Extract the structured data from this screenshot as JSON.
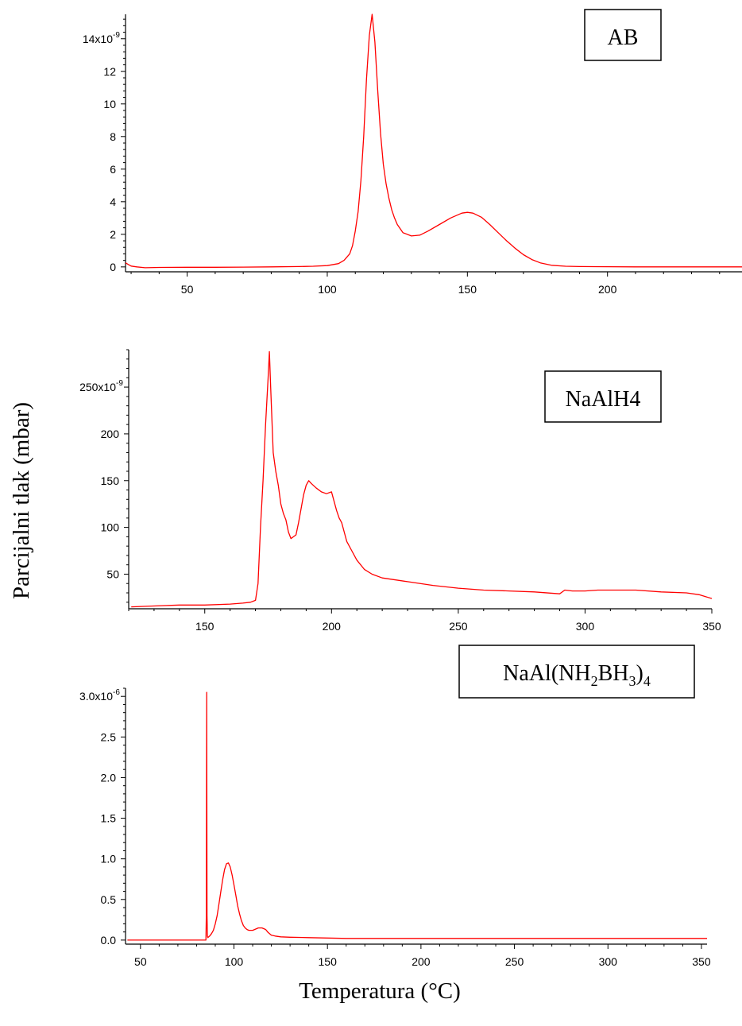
{
  "figure": {
    "ylabel": "Parcijalni tlak (mbar)",
    "xlabel": "Temperatura (°C)"
  },
  "chart_data": [
    {
      "type": "line",
      "title": "AB",
      "color": "#ff0000",
      "xlim": [
        28,
        248
      ],
      "ylim": [
        -0.3,
        15.5
      ],
      "y_exponent": "-9",
      "x_ticks": [
        50,
        100,
        150,
        200
      ],
      "x_tick_labels": [
        "50",
        "100",
        "150",
        "200"
      ],
      "y_ticks": [
        0,
        2,
        4,
        6,
        8,
        10,
        12,
        14
      ],
      "y_tick_labels": [
        "0",
        "2",
        "4",
        "6",
        "8",
        "10",
        "12",
        "14x10"
      ],
      "series": [
        {
          "x": [
            28,
            29,
            30,
            32,
            35,
            40,
            50,
            60,
            70,
            80,
            90,
            95,
            100,
            104,
            106,
            108,
            109,
            110,
            111,
            112,
            113,
            114,
            115,
            116,
            117,
            118,
            119,
            120,
            121,
            122,
            123,
            124,
            125,
            127,
            130,
            133,
            136,
            140,
            144,
            148,
            150,
            152,
            155,
            158,
            161,
            164,
            167,
            170,
            173,
            176,
            180,
            185,
            190,
            200,
            210,
            220,
            230,
            248
          ],
          "y": [
            0.25,
            0.15,
            0.05,
            0.0,
            -0.05,
            -0.03,
            -0.02,
            -0.02,
            -0.01,
            0.0,
            0.02,
            0.04,
            0.08,
            0.2,
            0.4,
            0.8,
            1.3,
            2.2,
            3.4,
            5.3,
            8.0,
            11.5,
            14.2,
            15.5,
            13.8,
            10.8,
            8.2,
            6.3,
            5.1,
            4.2,
            3.5,
            3.0,
            2.6,
            2.1,
            1.9,
            1.95,
            2.2,
            2.6,
            3.0,
            3.3,
            3.35,
            3.3,
            3.05,
            2.6,
            2.1,
            1.6,
            1.15,
            0.75,
            0.45,
            0.25,
            0.1,
            0.04,
            0.02,
            0.01,
            0.0,
            0.0,
            0.0,
            0.0
          ]
        }
      ]
    },
    {
      "type": "line",
      "title": "NaAlH4",
      "color": "#ff0000",
      "xlim": [
        120,
        350
      ],
      "ylim": [
        13,
        290
      ],
      "y_exponent": "-9",
      "x_ticks": [
        150,
        200,
        250,
        300,
        350
      ],
      "x_tick_labels": [
        "150",
        "200",
        "250",
        "300",
        "350"
      ],
      "y_ticks": [
        50,
        100,
        150,
        200,
        250
      ],
      "y_tick_labels": [
        "50",
        "100",
        "150",
        "200",
        "250x10"
      ],
      "series": [
        {
          "x": [
            121,
            130,
            140,
            150,
            160,
            165,
            168,
            170,
            171,
            172,
            173,
            174,
            175,
            175.5,
            176,
            177,
            178,
            179,
            180,
            181,
            182,
            183,
            184,
            185,
            186,
            187,
            188,
            189,
            190,
            191,
            192,
            194,
            196,
            198,
            200,
            201,
            202,
            203,
            204,
            205,
            206,
            208,
            210,
            213,
            216,
            220,
            230,
            240,
            250,
            260,
            270,
            280,
            290,
            292,
            295,
            300,
            305,
            310,
            315,
            320,
            330,
            340,
            345,
            350
          ],
          "y": [
            15,
            16,
            17,
            17,
            18,
            19,
            20,
            22,
            40,
            100,
            150,
            210,
            260,
            288,
            250,
            180,
            160,
            145,
            125,
            115,
            108,
            95,
            88,
            90,
            92,
            105,
            120,
            135,
            145,
            150,
            147,
            142,
            138,
            136,
            138,
            128,
            118,
            110,
            105,
            95,
            85,
            75,
            65,
            55,
            50,
            46,
            42,
            38,
            35,
            33,
            32,
            31,
            29,
            33,
            32,
            32,
            33,
            33,
            33,
            33,
            31,
            30,
            28,
            24
          ]
        }
      ]
    },
    {
      "type": "line",
      "title": "NaAl(NH2BH3)4",
      "color": "#ff0000",
      "xlim": [
        42,
        353
      ],
      "ylim": [
        -0.05,
        3.1
      ],
      "y_exponent": "-6",
      "x_ticks": [
        50,
        100,
        150,
        200,
        250,
        300,
        350
      ],
      "x_tick_labels": [
        "50",
        "100",
        "150",
        "200",
        "250",
        "300",
        "350"
      ],
      "y_ticks": [
        0.0,
        0.5,
        1.0,
        1.5,
        2.0,
        2.5,
        3.0
      ],
      "y_tick_labels": [
        "0.0",
        "0.5",
        "1.0",
        "1.5",
        "2.0",
        "2.5",
        "3.0x10"
      ],
      "series": [
        {
          "x": [
            43,
            60,
            70,
            80,
            85.0,
            85.2,
            85.4,
            85.6,
            85.8,
            86,
            87,
            88,
            89,
            90,
            91,
            92,
            93,
            94,
            95,
            96,
            97,
            98,
            99,
            100,
            101,
            102,
            103,
            104,
            105,
            106,
            107,
            108,
            109,
            110,
            111,
            112,
            113,
            114,
            115,
            116,
            117,
            118,
            119,
            120,
            122,
            125,
            130,
            140,
            150,
            160,
            170,
            180,
            200,
            250,
            300,
            353
          ],
          "y": [
            0.0,
            0.0,
            0.0,
            0.0,
            0.0,
            0.3,
            3.05,
            0.3,
            0.05,
            0.03,
            0.05,
            0.08,
            0.12,
            0.2,
            0.3,
            0.45,
            0.6,
            0.75,
            0.87,
            0.94,
            0.95,
            0.9,
            0.8,
            0.68,
            0.55,
            0.42,
            0.32,
            0.24,
            0.18,
            0.15,
            0.13,
            0.12,
            0.12,
            0.12,
            0.13,
            0.14,
            0.15,
            0.15,
            0.15,
            0.14,
            0.13,
            0.1,
            0.08,
            0.06,
            0.05,
            0.04,
            0.035,
            0.03,
            0.025,
            0.02,
            0.02,
            0.02,
            0.02,
            0.02,
            0.02,
            0.02
          ]
        }
      ]
    }
  ]
}
